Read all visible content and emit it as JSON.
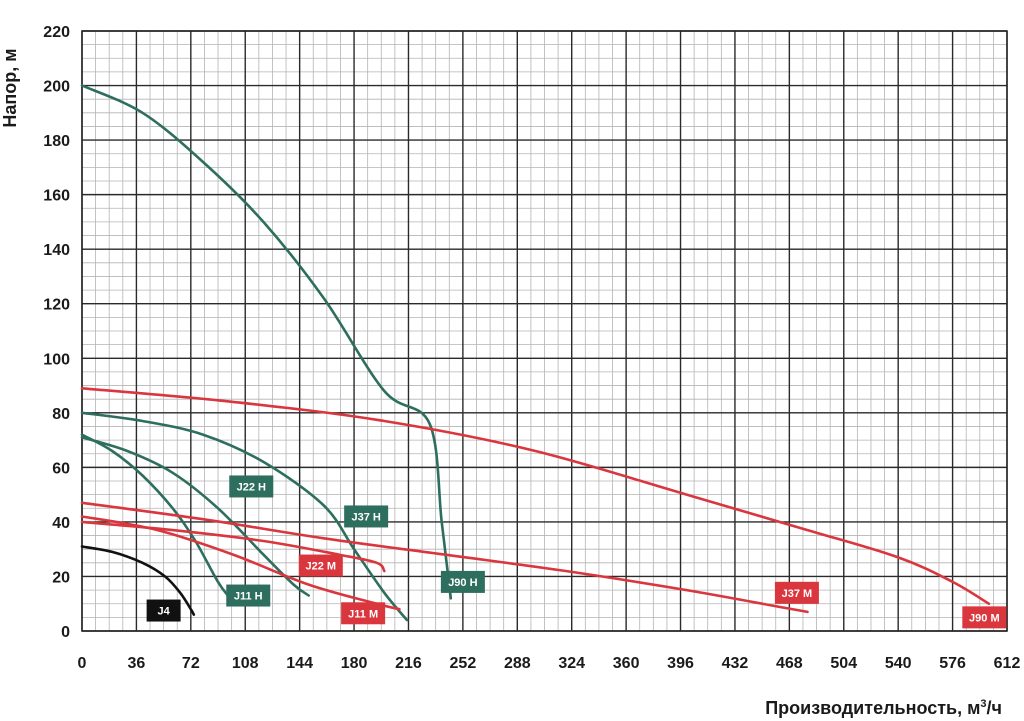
{
  "chart_data": {
    "type": "line",
    "title": "",
    "xlabel": "Производительность, м",
    "xlabel_sup": "3",
    "xlabel_tail": "/ч",
    "ylabel": "Напор, м",
    "xlim": [
      0,
      612
    ],
    "ylim": [
      0,
      220
    ],
    "x_ticks": [
      0,
      36,
      72,
      108,
      144,
      180,
      216,
      252,
      288,
      324,
      360,
      396,
      432,
      468,
      504,
      540,
      576,
      612
    ],
    "y_ticks": [
      0,
      20,
      40,
      60,
      80,
      100,
      120,
      140,
      160,
      180,
      200,
      220
    ],
    "grid": true,
    "colors": {
      "J4": "#111111",
      "H": "#2e6e5e",
      "M": "#d9363e"
    },
    "series": [
      {
        "name": "J4",
        "color": "#111111",
        "badge": "J4",
        "points": [
          [
            0,
            31
          ],
          [
            20,
            29
          ],
          [
            40,
            25
          ],
          [
            55,
            20
          ],
          [
            65,
            14
          ],
          [
            72,
            8
          ],
          [
            74,
            6
          ]
        ]
      },
      {
        "name": "J11 H",
        "color": "#2e6e5e",
        "badge": "J11 H",
        "points": [
          [
            0,
            72
          ],
          [
            20,
            66
          ],
          [
            40,
            57
          ],
          [
            60,
            45
          ],
          [
            75,
            33
          ],
          [
            90,
            18
          ],
          [
            98,
            12
          ]
        ]
      },
      {
        "name": "J22 H",
        "color": "#2e6e5e",
        "badge": "J22 H",
        "points": [
          [
            0,
            71
          ],
          [
            30,
            66
          ],
          [
            60,
            58
          ],
          [
            90,
            45
          ],
          [
            120,
            28
          ],
          [
            140,
            17
          ],
          [
            150,
            13
          ]
        ]
      },
      {
        "name": "J37 H",
        "color": "#2e6e5e",
        "badge": "J37 H",
        "points": [
          [
            0,
            80
          ],
          [
            40,
            77
          ],
          [
            80,
            72
          ],
          [
            120,
            62
          ],
          [
            160,
            46
          ],
          [
            180,
            30
          ],
          [
            200,
            14
          ],
          [
            215,
            4
          ]
        ]
      },
      {
        "name": "J90 H",
        "color": "#2e6e5e",
        "badge": "J90 H",
        "points": [
          [
            0,
            200
          ],
          [
            40,
            190
          ],
          [
            80,
            172
          ],
          [
            120,
            150
          ],
          [
            160,
            122
          ],
          [
            200,
            88
          ],
          [
            230,
            76
          ],
          [
            238,
            40
          ],
          [
            244,
            12
          ]
        ]
      },
      {
        "name": "J11 M",
        "color": "#d9363e",
        "badge": "J11 M",
        "points": [
          [
            0,
            42
          ],
          [
            50,
            37
          ],
          [
            100,
            28
          ],
          [
            150,
            17
          ],
          [
            195,
            10
          ],
          [
            210,
            8
          ]
        ]
      },
      {
        "name": "J22 M",
        "color": "#d9363e",
        "badge": "J22 M",
        "points": [
          [
            0,
            40
          ],
          [
            60,
            37
          ],
          [
            120,
            33
          ],
          [
            170,
            28
          ],
          [
            195,
            25
          ],
          [
            200,
            22
          ]
        ]
      },
      {
        "name": "J37 M",
        "color": "#d9363e",
        "badge": "J37 M",
        "points": [
          [
            0,
            47
          ],
          [
            80,
            41
          ],
          [
            160,
            34
          ],
          [
            240,
            28
          ],
          [
            320,
            22
          ],
          [
            400,
            15
          ],
          [
            460,
            9
          ],
          [
            480,
            7
          ]
        ]
      },
      {
        "name": "J90 M",
        "color": "#d9363e",
        "badge": "J90 M",
        "points": [
          [
            0,
            89
          ],
          [
            100,
            84
          ],
          [
            200,
            77
          ],
          [
            300,
            66
          ],
          [
            400,
            50
          ],
          [
            480,
            37
          ],
          [
            540,
            27
          ],
          [
            576,
            18
          ],
          [
            600,
            10
          ]
        ]
      }
    ],
    "badges": [
      {
        "label": "J4",
        "color": "#111111",
        "x": 54,
        "y": 7.5
      },
      {
        "label": "J11 H",
        "color": "#2e6e5e",
        "x": 110,
        "y": 13
      },
      {
        "label": "J22 H",
        "color": "#2e6e5e",
        "x": 112,
        "y": 53
      },
      {
        "label": "J37 H",
        "color": "#2e6e5e",
        "x": 188,
        "y": 42
      },
      {
        "label": "J90 H",
        "color": "#2e6e5e",
        "x": 252,
        "y": 18
      },
      {
        "label": "J22 M",
        "color": "#d9363e",
        "x": 158,
        "y": 24
      },
      {
        "label": "J11 M",
        "color": "#d9363e",
        "x": 186,
        "y": 6.5
      },
      {
        "label": "J37 M",
        "color": "#d9363e",
        "x": 473,
        "y": 14
      },
      {
        "label": "J90 M",
        "color": "#d9363e",
        "x": 597,
        "y": 5
      }
    ]
  }
}
